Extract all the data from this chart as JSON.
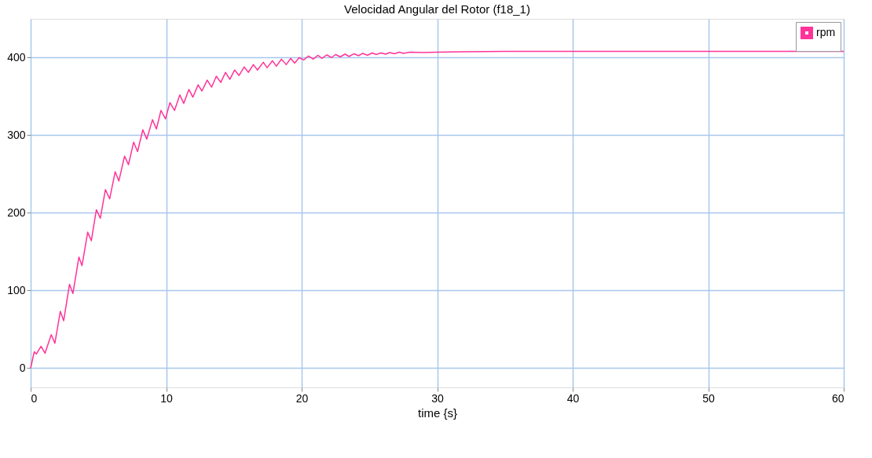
{
  "chart_data": {
    "type": "line",
    "title": "Velocidad Angular del Rotor (f18_1)",
    "xlabel": "time {s}",
    "x": [
      0,
      0.27,
      0.42,
      0.77,
      1.06,
      1.52,
      1.79,
      2.19,
      2.44,
      2.87,
      3.12,
      3.56,
      3.79,
      4.21,
      4.48,
      4.85,
      5.14,
      5.52,
      5.83,
      6.24,
      6.51,
      6.93,
      7.22,
      7.6,
      7.89,
      8.28,
      8.57,
      8.99,
      9.28,
      9.62,
      9.95,
      10.28,
      10.62,
      11.01,
      11.3,
      11.68,
      11.97,
      12.36,
      12.64,
      13.03,
      13.36,
      13.7,
      14.03,
      14.38,
      14.7,
      15.05,
      15.38,
      15.76,
      16.07,
      16.44,
      16.74,
      17.17,
      17.45,
      17.84,
      18.13,
      18.51,
      18.86,
      19.19,
      19.48,
      19.82,
      20.15,
      20.5,
      20.85,
      21.2,
      21.5,
      21.85,
      22.2,
      22.5,
      22.85,
      23.2,
      23.5,
      23.85,
      24.2,
      24.5,
      24.85,
      25.2,
      25.5,
      25.85,
      26.2,
      26.5,
      26.85,
      27.2,
      27.5,
      28,
      29,
      30,
      32,
      35,
      40,
      45,
      50,
      55,
      60
    ],
    "series": [
      {
        "name": "rpm",
        "color": "#ff3399",
        "values": [
          0,
          21,
          18,
          28,
          19,
          43,
          32,
          73,
          61,
          108,
          96,
          143,
          132,
          175,
          164,
          204,
          193,
          230,
          218,
          253,
          241,
          273,
          262,
          291,
          279,
          307,
          295,
          320,
          308,
          332,
          321,
          342,
          332,
          352,
          341,
          359,
          349,
          365,
          357,
          371,
          362,
          376,
          368,
          381,
          372,
          384,
          377,
          388,
          381,
          391,
          384,
          394,
          387,
          396,
          389,
          398,
          391,
          399,
          393,
          400,
          397,
          402,
          398,
          403,
          399,
          403.5,
          400,
          404,
          401,
          404.5,
          401.5,
          405,
          402.5,
          405.5,
          403,
          406,
          404,
          406,
          404.5,
          406.5,
          405,
          407,
          405.5,
          407,
          406.5,
          407,
          407.5,
          408,
          408,
          408,
          408,
          408,
          408
        ]
      }
    ],
    "xlim": [
      0,
      60
    ],
    "xticks": [
      0,
      10,
      20,
      30,
      40,
      50,
      60
    ],
    "ylim": [
      -25,
      450
    ],
    "yticks": [
      0,
      100,
      200,
      300,
      400
    ],
    "grid": true,
    "legend": "top right",
    "marker": "none",
    "line_style": "solid"
  }
}
